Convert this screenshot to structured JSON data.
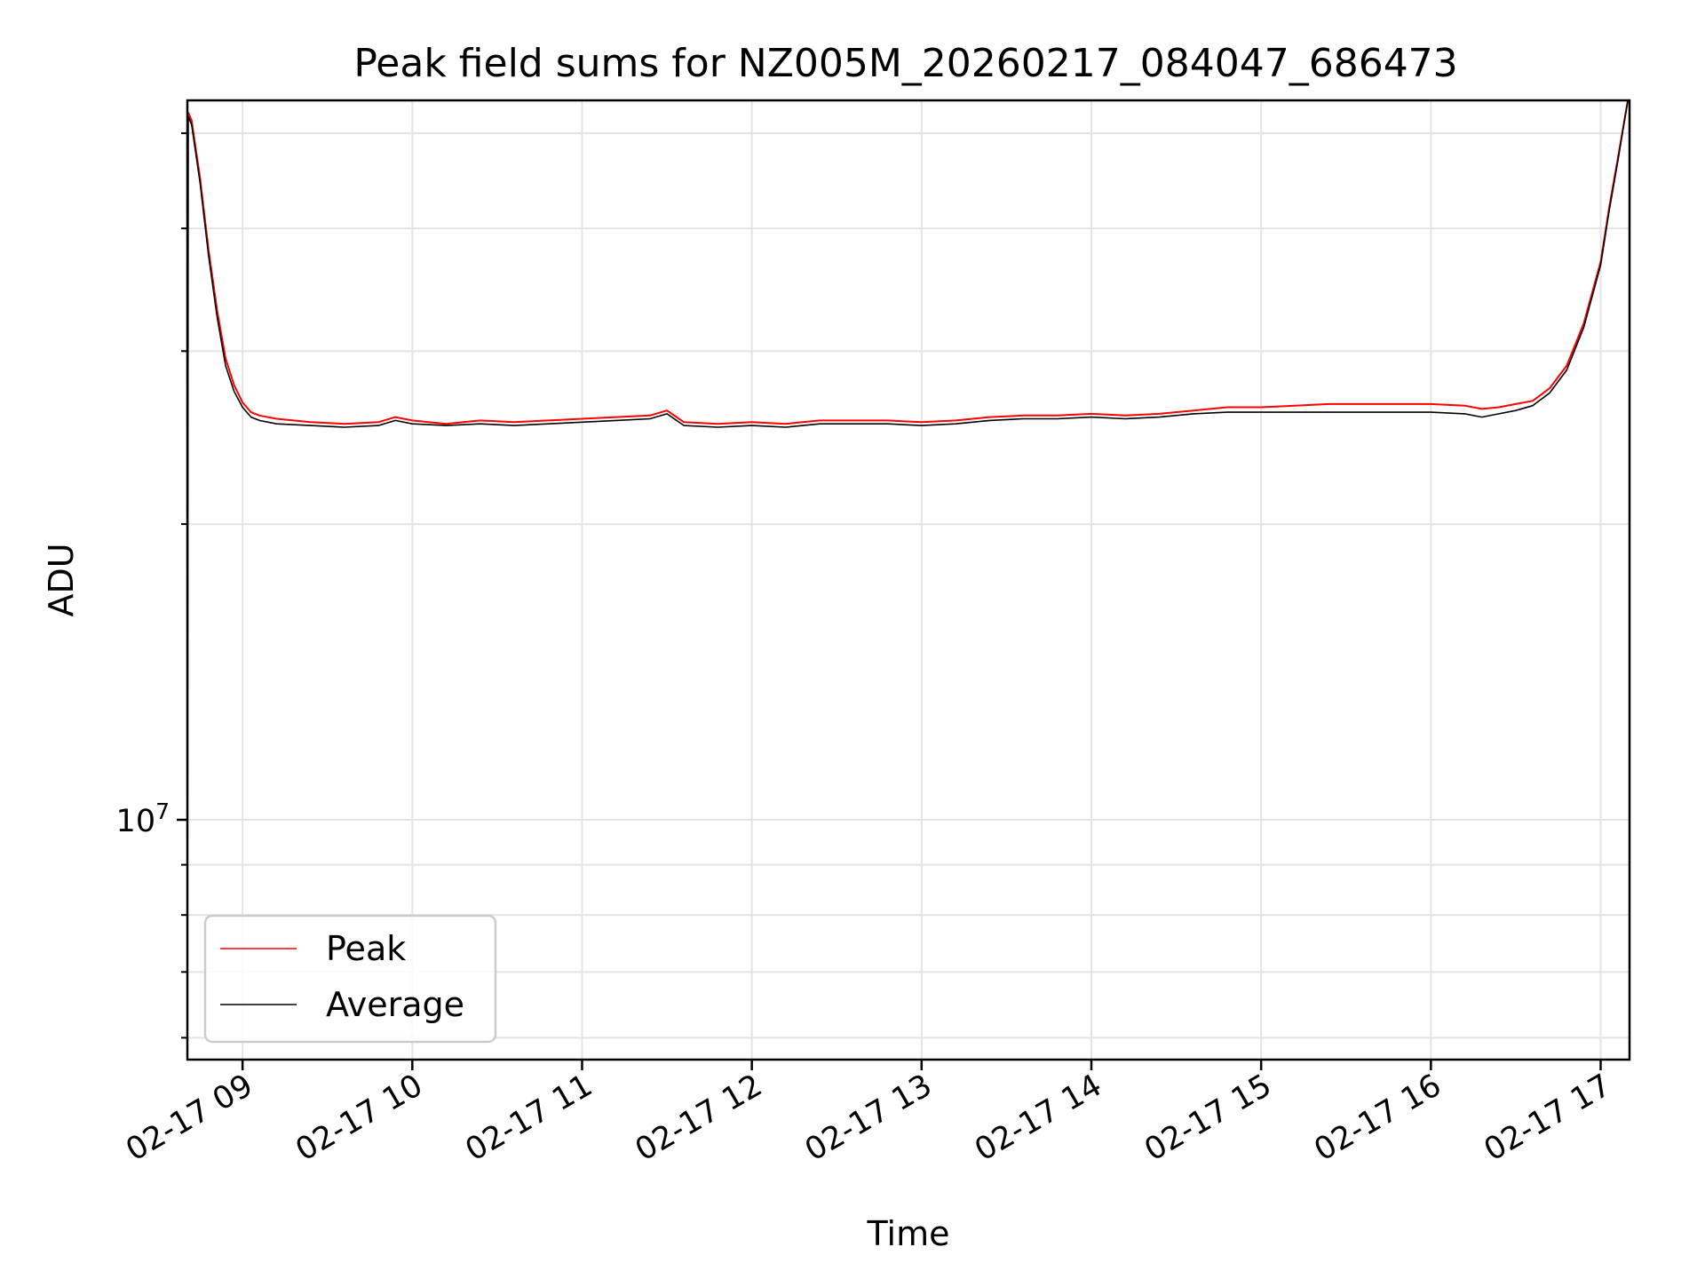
{
  "chart_data": {
    "type": "line",
    "title": "Peak field sums for NZ005M_20260217_084047_686473",
    "xlabel": "Time",
    "ylabel": "ADU",
    "yscale": "log",
    "ylim": [
      5700000,
      54000000
    ],
    "xlim": [
      8.675,
      17.17
    ],
    "grid": true,
    "x_ticks": [
      {
        "value": 9,
        "label": "02-17 09"
      },
      {
        "value": 10,
        "label": "02-17 10"
      },
      {
        "value": 11,
        "label": "02-17 11"
      },
      {
        "value": 12,
        "label": "02-17 12"
      },
      {
        "value": 13,
        "label": "02-17 13"
      },
      {
        "value": 14,
        "label": "02-17 14"
      },
      {
        "value": 15,
        "label": "02-17 15"
      },
      {
        "value": 16,
        "label": "02-17 16"
      },
      {
        "value": 17,
        "label": "02-17 17"
      }
    ],
    "y_major_ticks": [
      {
        "value": 10000000,
        "base": "10",
        "exponent": "7"
      }
    ],
    "y_minor_ticks": [
      6000000,
      7000000,
      8000000,
      9000000,
      20000000,
      30000000,
      40000000,
      50000000
    ],
    "legend": {
      "location": "lower-left"
    },
    "series": [
      {
        "name": "Peak",
        "color": "#ff0000",
        "x": [
          8.68,
          8.7,
          8.75,
          8.8,
          8.85,
          8.9,
          8.95,
          9.0,
          9.05,
          9.1,
          9.2,
          9.4,
          9.6,
          9.8,
          9.9,
          10.0,
          10.2,
          10.4,
          10.6,
          10.8,
          11.0,
          11.2,
          11.4,
          11.5,
          11.6,
          11.8,
          12.0,
          12.2,
          12.4,
          12.6,
          12.8,
          13.0,
          13.2,
          13.4,
          13.6,
          13.8,
          14.0,
          14.2,
          14.4,
          14.6,
          14.8,
          15.0,
          15.2,
          15.4,
          15.6,
          15.8,
          16.0,
          16.2,
          16.3,
          16.4,
          16.5,
          16.6,
          16.7,
          16.8,
          16.9,
          17.0,
          17.05,
          17.1,
          17.16
        ],
        "y": [
          52500000,
          51500000,
          45000000,
          38000000,
          33000000,
          29500000,
          27700000,
          26600000,
          26000000,
          25800000,
          25600000,
          25400000,
          25300000,
          25400000,
          25700000,
          25500000,
          25300000,
          25500000,
          25400000,
          25500000,
          25600000,
          25700000,
          25800000,
          26100000,
          25400000,
          25300000,
          25400000,
          25300000,
          25500000,
          25500000,
          25500000,
          25400000,
          25500000,
          25700000,
          25800000,
          25800000,
          25900000,
          25800000,
          25900000,
          26100000,
          26300000,
          26300000,
          26400000,
          26500000,
          26500000,
          26500000,
          26500000,
          26400000,
          26200000,
          26300000,
          26500000,
          26700000,
          27500000,
          29000000,
          32000000,
          37000000,
          42000000,
          47000000,
          54000000
        ]
      },
      {
        "name": "Average",
        "color": "#000000",
        "x": [
          8.675,
          8.68,
          8.7,
          8.75,
          8.8,
          8.85,
          8.9,
          8.95,
          9.0,
          9.05,
          9.1,
          9.2,
          9.4,
          9.6,
          9.8,
          9.9,
          10.0,
          10.2,
          10.4,
          10.6,
          10.8,
          11.0,
          11.2,
          11.4,
          11.5,
          11.6,
          11.8,
          12.0,
          12.2,
          12.4,
          12.6,
          12.8,
          13.0,
          13.2,
          13.4,
          13.6,
          13.8,
          14.0,
          14.2,
          14.4,
          14.6,
          14.8,
          15.0,
          15.2,
          15.4,
          15.6,
          15.8,
          16.0,
          16.2,
          16.3,
          16.4,
          16.5,
          16.6,
          16.7,
          16.8,
          16.9,
          17.0,
          17.05,
          17.1,
          17.16
        ],
        "y": [
          5700000,
          52000000,
          51000000,
          44500000,
          37500000,
          32500000,
          29000000,
          27300000,
          26300000,
          25700000,
          25500000,
          25300000,
          25200000,
          25100000,
          25200000,
          25500000,
          25300000,
          25200000,
          25300000,
          25200000,
          25300000,
          25400000,
          25500000,
          25600000,
          25900000,
          25200000,
          25100000,
          25200000,
          25100000,
          25300000,
          25300000,
          25300000,
          25200000,
          25300000,
          25500000,
          25600000,
          25600000,
          25700000,
          25600000,
          25700000,
          25900000,
          26000000,
          26000000,
          26000000,
          26000000,
          26000000,
          26000000,
          26000000,
          25900000,
          25700000,
          25900000,
          26100000,
          26400000,
          27200000,
          28700000,
          31700000,
          36700000,
          41700000,
          46700000,
          54000000
        ]
      }
    ]
  }
}
